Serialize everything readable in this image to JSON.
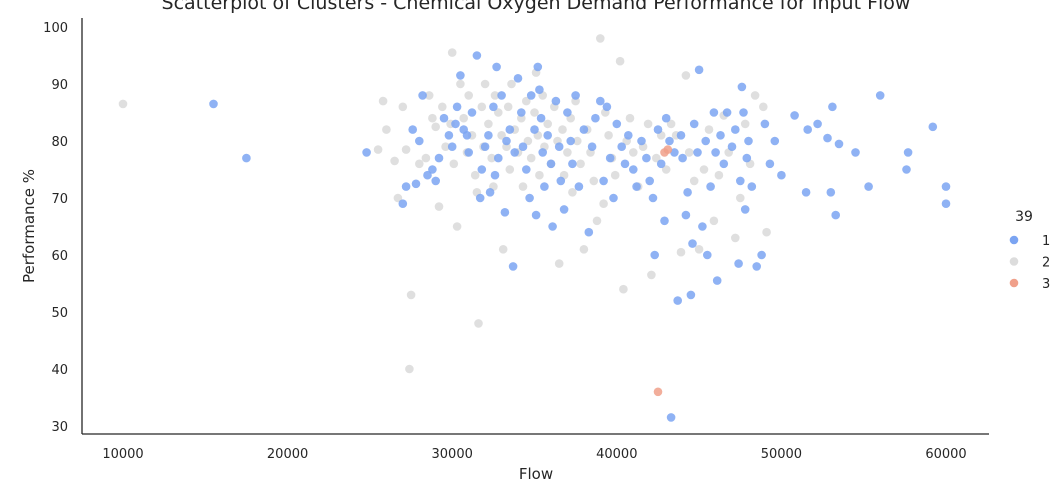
{
  "chart_data": {
    "type": "scatter",
    "title": "Scatterplot of Clusters - Chemical Oxygen Demand Performance for Input Flow",
    "xlabel": "Flow",
    "ylabel": "Performance %",
    "xlim": [
      7500,
      62500
    ],
    "ylim": [
      28,
      102
    ],
    "xticks": [
      10000,
      20000,
      30000,
      40000,
      50000,
      60000
    ],
    "yticks": [
      30,
      40,
      50,
      60,
      70,
      80,
      90,
      100
    ],
    "grid": false,
    "legend": {
      "title": "39",
      "position": "right"
    },
    "series": [
      {
        "name": "1",
        "color": "#7ba4f2",
        "points": [
          [
            15500,
            86.5
          ],
          [
            17500,
            77
          ],
          [
            24800,
            78
          ],
          [
            27000,
            69
          ],
          [
            27200,
            72
          ],
          [
            27600,
            82
          ],
          [
            27800,
            72.5
          ],
          [
            28000,
            80
          ],
          [
            28200,
            88
          ],
          [
            28500,
            74
          ],
          [
            28800,
            75
          ],
          [
            29000,
            73
          ],
          [
            29200,
            77
          ],
          [
            29500,
            84
          ],
          [
            29800,
            81
          ],
          [
            30000,
            79
          ],
          [
            30200,
            83
          ],
          [
            30300,
            86
          ],
          [
            30500,
            91.5
          ],
          [
            30700,
            82
          ],
          [
            30900,
            81
          ],
          [
            31000,
            78
          ],
          [
            31200,
            85
          ],
          [
            31500,
            95
          ],
          [
            31700,
            70
          ],
          [
            31800,
            75
          ],
          [
            32000,
            79
          ],
          [
            32200,
            81
          ],
          [
            32300,
            71
          ],
          [
            32500,
            86
          ],
          [
            32600,
            74
          ],
          [
            32700,
            93
          ],
          [
            32800,
            77
          ],
          [
            33000,
            88
          ],
          [
            33200,
            67.5
          ],
          [
            33300,
            80
          ],
          [
            33500,
            82
          ],
          [
            33700,
            58
          ],
          [
            33800,
            78
          ],
          [
            34000,
            91
          ],
          [
            34200,
            85
          ],
          [
            34300,
            79
          ],
          [
            34500,
            75
          ],
          [
            34700,
            70
          ],
          [
            34800,
            88
          ],
          [
            35000,
            82
          ],
          [
            35100,
            67
          ],
          [
            35200,
            93
          ],
          [
            35300,
            89
          ],
          [
            35400,
            84
          ],
          [
            35500,
            78
          ],
          [
            35600,
            72
          ],
          [
            35800,
            81
          ],
          [
            36000,
            76
          ],
          [
            36100,
            65
          ],
          [
            36300,
            87
          ],
          [
            36500,
            79
          ],
          [
            36600,
            73
          ],
          [
            36800,
            68
          ],
          [
            37000,
            85
          ],
          [
            37200,
            80
          ],
          [
            37300,
            76
          ],
          [
            37500,
            88
          ],
          [
            37700,
            72
          ],
          [
            38000,
            82
          ],
          [
            38300,
            64
          ],
          [
            38500,
            79
          ],
          [
            38700,
            84
          ],
          [
            39000,
            87
          ],
          [
            39200,
            73
          ],
          [
            39400,
            86
          ],
          [
            39600,
            77
          ],
          [
            39800,
            70
          ],
          [
            40000,
            83
          ],
          [
            40300,
            79
          ],
          [
            40500,
            76
          ],
          [
            40700,
            81
          ],
          [
            41000,
            75
          ],
          [
            41200,
            72
          ],
          [
            41500,
            80
          ],
          [
            41800,
            77
          ],
          [
            42000,
            73
          ],
          [
            42200,
            70
          ],
          [
            42300,
            60
          ],
          [
            42500,
            82
          ],
          [
            42700,
            76
          ],
          [
            42900,
            66
          ],
          [
            43000,
            84
          ],
          [
            43200,
            80
          ],
          [
            43300,
            31.5
          ],
          [
            43500,
            78
          ],
          [
            43700,
            52
          ],
          [
            43900,
            81
          ],
          [
            44000,
            77
          ],
          [
            44200,
            67
          ],
          [
            44300,
            71
          ],
          [
            44500,
            53
          ],
          [
            44600,
            62
          ],
          [
            44700,
            83
          ],
          [
            44900,
            78
          ],
          [
            45000,
            92.5
          ],
          [
            45200,
            65
          ],
          [
            45400,
            80
          ],
          [
            45500,
            60
          ],
          [
            45700,
            72
          ],
          [
            45900,
            85
          ],
          [
            46000,
            78
          ],
          [
            46100,
            55.5
          ],
          [
            46300,
            81
          ],
          [
            46500,
            76
          ],
          [
            46700,
            85
          ],
          [
            47000,
            79
          ],
          [
            47200,
            82
          ],
          [
            47400,
            58.5
          ],
          [
            47500,
            73
          ],
          [
            47600,
            89.5
          ],
          [
            47700,
            85
          ],
          [
            47800,
            68
          ],
          [
            47900,
            77
          ],
          [
            48000,
            80
          ],
          [
            48200,
            72
          ],
          [
            48500,
            58
          ],
          [
            48800,
            60
          ],
          [
            49000,
            83
          ],
          [
            49300,
            76
          ],
          [
            49600,
            80
          ],
          [
            50000,
            74
          ],
          [
            50800,
            84.5
          ],
          [
            51500,
            71
          ],
          [
            51600,
            82
          ],
          [
            52200,
            83
          ],
          [
            52800,
            80.5
          ],
          [
            53000,
            71
          ],
          [
            53100,
            86
          ],
          [
            53300,
            67
          ],
          [
            53500,
            79.5
          ],
          [
            54500,
            78
          ],
          [
            55300,
            72
          ],
          [
            56000,
            88
          ],
          [
            57600,
            75
          ],
          [
            57700,
            78
          ],
          [
            59200,
            82.5
          ],
          [
            60000,
            72
          ],
          [
            60000,
            69
          ]
        ]
      },
      {
        "name": "2",
        "color": "#dcdcdc",
        "points": [
          [
            10000,
            86.5
          ],
          [
            25500,
            78.5
          ],
          [
            25800,
            87
          ],
          [
            26000,
            82
          ],
          [
            26500,
            76.5
          ],
          [
            26700,
            70
          ],
          [
            27000,
            86
          ],
          [
            27200,
            78.5
          ],
          [
            27400,
            40
          ],
          [
            27500,
            53
          ],
          [
            28000,
            76
          ],
          [
            28400,
            77
          ],
          [
            28600,
            88
          ],
          [
            28800,
            84
          ],
          [
            29000,
            82.5
          ],
          [
            29200,
            68.5
          ],
          [
            29400,
            86
          ],
          [
            29600,
            79
          ],
          [
            29900,
            83
          ],
          [
            30000,
            95.5
          ],
          [
            30100,
            76
          ],
          [
            30300,
            65
          ],
          [
            30500,
            90
          ],
          [
            30700,
            84
          ],
          [
            30900,
            78
          ],
          [
            31000,
            88
          ],
          [
            31200,
            81
          ],
          [
            31400,
            74
          ],
          [
            31500,
            71
          ],
          [
            31600,
            48
          ],
          [
            31800,
            86
          ],
          [
            31900,
            79
          ],
          [
            32000,
            90
          ],
          [
            32200,
            83
          ],
          [
            32400,
            77
          ],
          [
            32500,
            72
          ],
          [
            32600,
            88
          ],
          [
            32800,
            85
          ],
          [
            33000,
            81
          ],
          [
            33100,
            61
          ],
          [
            33300,
            79
          ],
          [
            33400,
            86
          ],
          [
            33500,
            75
          ],
          [
            33600,
            90
          ],
          [
            33800,
            82
          ],
          [
            34000,
            78
          ],
          [
            34200,
            84
          ],
          [
            34300,
            72
          ],
          [
            34500,
            87
          ],
          [
            34600,
            80
          ],
          [
            34800,
            77
          ],
          [
            35000,
            85
          ],
          [
            35100,
            92
          ],
          [
            35200,
            81
          ],
          [
            35300,
            74
          ],
          [
            35500,
            88
          ],
          [
            35600,
            79
          ],
          [
            35800,
            83
          ],
          [
            36000,
            76
          ],
          [
            36200,
            86
          ],
          [
            36400,
            80
          ],
          [
            36500,
            58.5
          ],
          [
            36700,
            82
          ],
          [
            36800,
            74
          ],
          [
            37000,
            78
          ],
          [
            37200,
            84
          ],
          [
            37300,
            71
          ],
          [
            37500,
            87
          ],
          [
            37600,
            80
          ],
          [
            37800,
            76
          ],
          [
            38000,
            61
          ],
          [
            38200,
            82
          ],
          [
            38400,
            78
          ],
          [
            38600,
            73
          ],
          [
            38800,
            66
          ],
          [
            39000,
            98
          ],
          [
            39200,
            69
          ],
          [
            39300,
            85
          ],
          [
            39500,
            81
          ],
          [
            39700,
            77
          ],
          [
            39900,
            74
          ],
          [
            40200,
            94
          ],
          [
            40400,
            54
          ],
          [
            40600,
            80
          ],
          [
            40800,
            84
          ],
          [
            41000,
            78
          ],
          [
            41300,
            72
          ],
          [
            41600,
            79
          ],
          [
            41900,
            83
          ],
          [
            42100,
            56.5
          ],
          [
            42400,
            77
          ],
          [
            42700,
            81
          ],
          [
            43000,
            75
          ],
          [
            43300,
            83
          ],
          [
            43600,
            81
          ],
          [
            43900,
            60.5
          ],
          [
            44200,
            91.5
          ],
          [
            44400,
            78
          ],
          [
            44700,
            73
          ],
          [
            45000,
            61
          ],
          [
            45300,
            75
          ],
          [
            45600,
            82
          ],
          [
            45900,
            66
          ],
          [
            46200,
            74
          ],
          [
            46500,
            84.5
          ],
          [
            46800,
            78
          ],
          [
            47200,
            63
          ],
          [
            47500,
            70
          ],
          [
            47800,
            83
          ],
          [
            48100,
            76
          ],
          [
            48400,
            88
          ],
          [
            48900,
            86
          ],
          [
            49100,
            64
          ]
        ]
      },
      {
        "name": "3",
        "color": "#f0a08a",
        "points": [
          [
            42500,
            36
          ],
          [
            42900,
            78
          ],
          [
            43100,
            78.5
          ]
        ]
      }
    ]
  }
}
